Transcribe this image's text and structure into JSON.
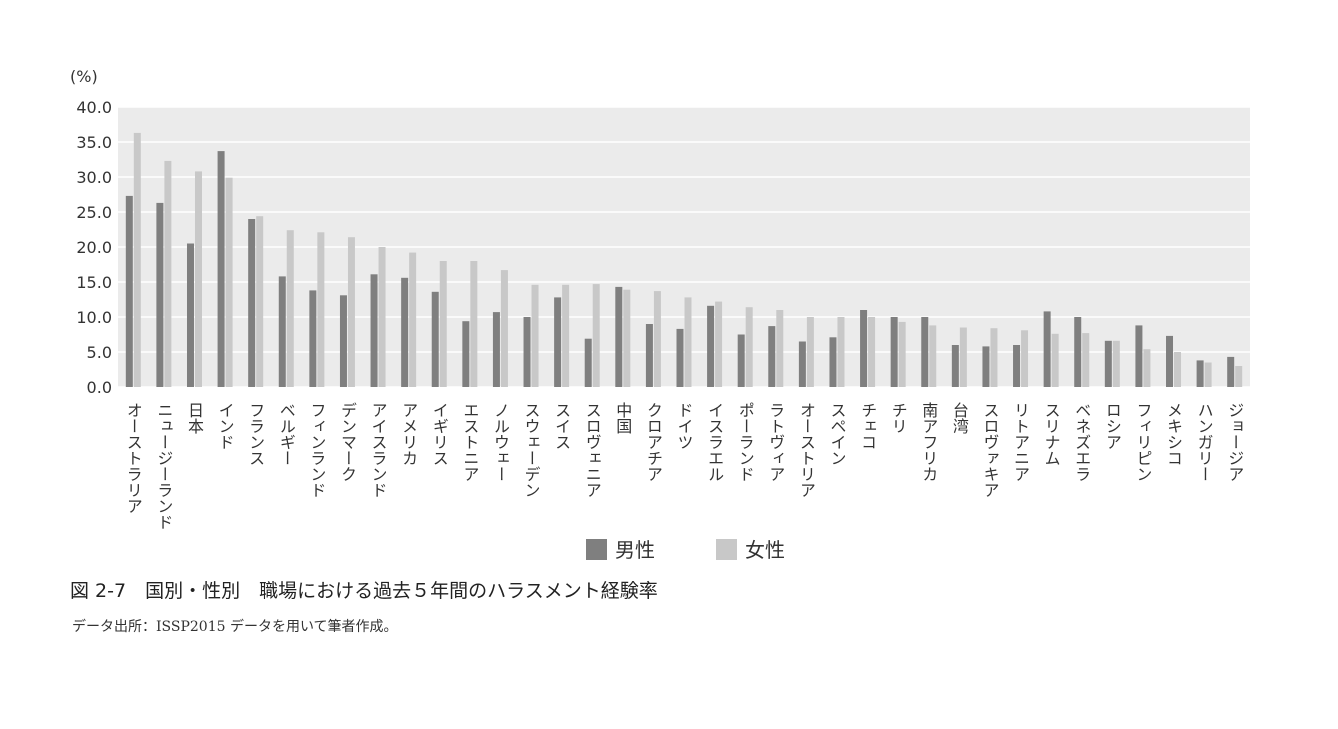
{
  "figure": {
    "caption": "図 2-7　国別・性別　職場における過去５年間のハラスメント経験率",
    "source": "データ出所：ISSP2015 データを用いて筆者作成。"
  },
  "chart_data": {
    "type": "bar",
    "ylabel": "(%)",
    "ylim": [
      0,
      40
    ],
    "yticks": [
      "0.0",
      "5.0",
      "10.0",
      "15.0",
      "20.0",
      "25.0",
      "30.0",
      "35.0",
      "40.0"
    ],
    "grid": true,
    "legend_position": "bottom-center",
    "categories": [
      "オーストラリア",
      "ニュージーランド",
      "日本",
      "インド",
      "フランス",
      "ベルギー",
      "フィンランド",
      "デンマーク",
      "アイスランド",
      "アメリカ",
      "イギリス",
      "エストニア",
      "ノルウェー",
      "スウェーデン",
      "スイス",
      "スロヴェニア",
      "中国",
      "クロアチア",
      "ドイツ",
      "イスラエル",
      "ポーランド",
      "ラトヴィア",
      "オーストリア",
      "スペイン",
      "チェコ",
      "チリ",
      "南アフリカ",
      "台湾",
      "スロヴァキア",
      "リトアニア",
      "スリナム",
      "ベネズエラ",
      "ロシア",
      "フィリピン",
      "メキシコ",
      "ハンガリー",
      "ジョージア"
    ],
    "series": [
      {
        "name": "男性",
        "color": "#7f7f7f",
        "values": [
          27.3,
          26.3,
          20.5,
          33.7,
          24.0,
          15.8,
          13.8,
          13.1,
          16.1,
          15.6,
          13.6,
          9.4,
          10.7,
          10.0,
          12.8,
          6.9,
          14.3,
          9.0,
          8.3,
          11.6,
          7.5,
          8.7,
          6.5,
          7.1,
          11.0,
          10.0,
          10.0,
          6.0,
          5.8,
          6.0,
          10.8,
          10.0,
          6.6,
          8.8,
          7.3,
          3.8,
          4.3
        ]
      },
      {
        "name": "女性",
        "color": "#c8c8c8",
        "values": [
          36.3,
          32.3,
          30.8,
          29.9,
          24.4,
          22.4,
          22.1,
          21.4,
          20.0,
          19.2,
          18.0,
          18.0,
          16.7,
          14.6,
          14.6,
          14.7,
          13.9,
          13.7,
          12.8,
          12.2,
          11.4,
          11.0,
          10.0,
          10.0,
          10.0,
          9.3,
          8.8,
          8.5,
          8.4,
          8.1,
          7.6,
          7.7,
          6.6,
          5.4,
          5.0,
          3.5,
          3.0
        ]
      }
    ]
  }
}
